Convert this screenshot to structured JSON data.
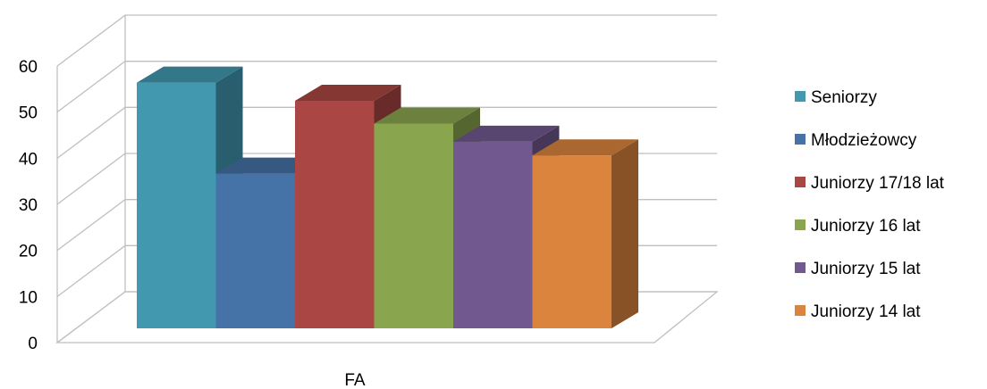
{
  "chart_data": {
    "type": "bar",
    "title": "",
    "xlabel": "",
    "ylabel": "",
    "categories": [
      "FA"
    ],
    "ylim": [
      0,
      60
    ],
    "yticks": [
      0,
      10,
      20,
      30,
      40,
      50,
      60
    ],
    "grid": true,
    "three_d": true,
    "legend_position": "right",
    "series": [
      {
        "name": "Seniorzy",
        "values": [
          54
        ],
        "color": "#4198AF"
      },
      {
        "name": "Młodzieżowcy",
        "values": [
          34
        ],
        "color": "#4572A7"
      },
      {
        "name": "Juniorzy 17/18 lat",
        "values": [
          50
        ],
        "color": "#AA4643"
      },
      {
        "name": "Juniorzy 16 lat",
        "values": [
          45
        ],
        "color": "#89A54E"
      },
      {
        "name": "Juniorzy 15 lat",
        "values": [
          41
        ],
        "color": "#71588F"
      },
      {
        "name": "Juniorzy 14 lat",
        "values": [
          38
        ],
        "color": "#DB843D"
      }
    ]
  }
}
